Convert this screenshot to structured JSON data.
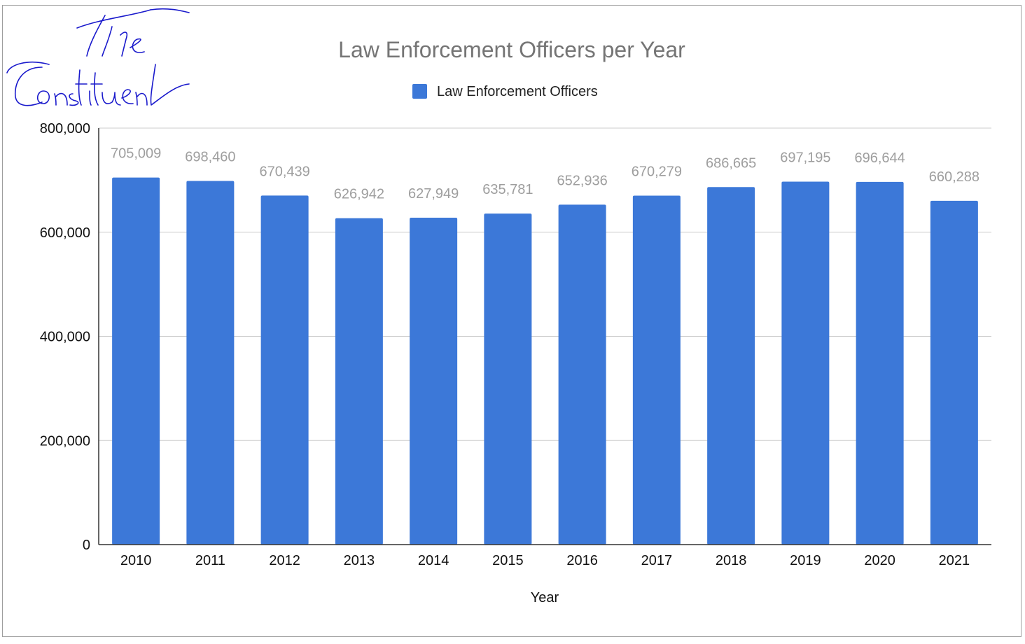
{
  "logo": {
    "text": "The Constituent"
  },
  "chart_data": {
    "type": "bar",
    "title": "Law Enforcement Officers per Year",
    "xlabel": "Year",
    "ylabel": "",
    "ylim": [
      0,
      800000
    ],
    "yticks": [
      0,
      200000,
      400000,
      600000,
      800000
    ],
    "ytick_labels": [
      "0",
      "200,000",
      "400,000",
      "600,000",
      "800,000"
    ],
    "categories": [
      "2010",
      "2011",
      "2012",
      "2013",
      "2014",
      "2015",
      "2016",
      "2017",
      "2018",
      "2019",
      "2020",
      "2021"
    ],
    "series": [
      {
        "name": "Law Enforcement Officers",
        "color": "#3c78d8",
        "values": [
          705009,
          698460,
          670439,
          626942,
          627949,
          635781,
          652936,
          670279,
          686665,
          697195,
          696644,
          660288
        ],
        "labels": [
          "705,009",
          "698,460",
          "670,439",
          "626,942",
          "627,949",
          "635,781",
          "652,936",
          "670,279",
          "686,665",
          "697,195",
          "696,644",
          "660,288"
        ]
      }
    ],
    "grid": true,
    "legend_position": "top"
  }
}
